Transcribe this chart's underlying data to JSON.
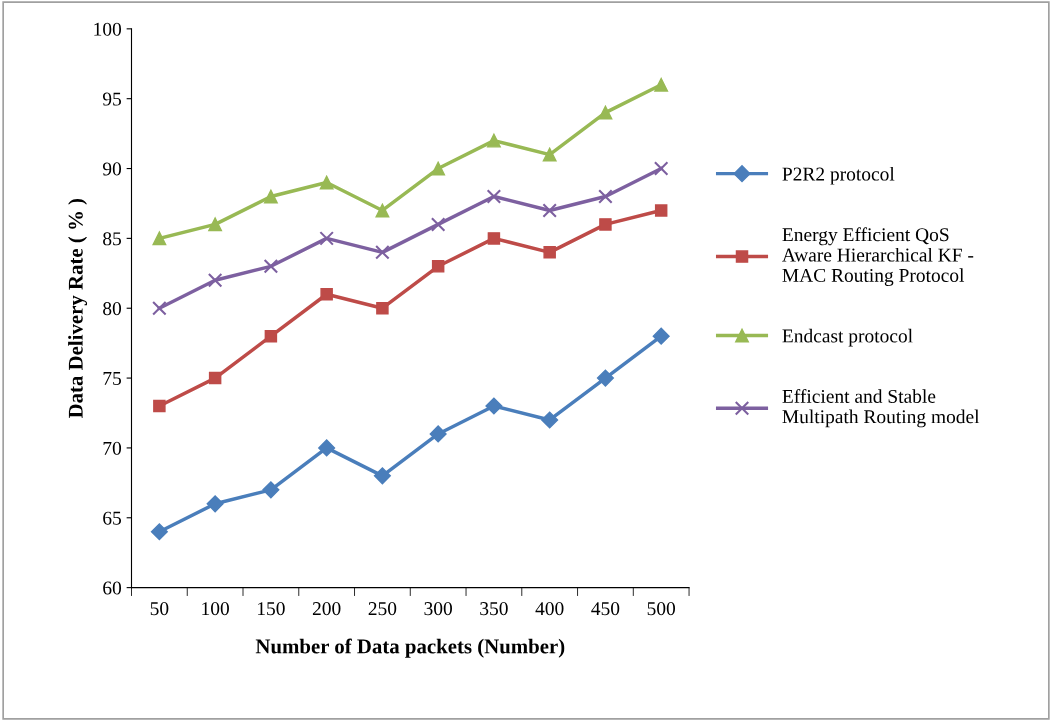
{
  "chart_data": {
    "type": "line",
    "xlabel": "Number of Data packets (Number)",
    "ylabel": "Data Delivery Rate ( % )",
    "categories": [
      "50",
      "100",
      "150",
      "200",
      "250",
      "300",
      "350",
      "400",
      "450",
      "500"
    ],
    "series": [
      {
        "name": "P2R2 protocol",
        "color": "#4a7ebb",
        "marker": "diamond",
        "values": [
          64,
          66,
          67,
          70,
          68,
          71,
          73,
          72,
          75,
          78
        ]
      },
      {
        "name": "Energy Efficient QoS\nAware Hierarchical KF -\nMAC Routing Protocol",
        "color": "#be4b48",
        "marker": "square",
        "values": [
          73,
          75,
          78,
          81,
          80,
          83,
          85,
          84,
          86,
          87
        ]
      },
      {
        "name": "Endcast protocol",
        "color": "#98b954",
        "marker": "triangle",
        "values": [
          85,
          86,
          88,
          89,
          87,
          90,
          92,
          91,
          94,
          96
        ]
      },
      {
        "name": "Efficient and Stable\nMultipath Routing model",
        "color": "#7d60a0",
        "marker": "cross",
        "values": [
          80,
          82,
          83,
          85,
          84,
          86,
          88,
          87,
          88,
          90
        ]
      }
    ],
    "ylim": [
      60,
      100
    ],
    "yticks": [
      60,
      65,
      70,
      75,
      80,
      85,
      90,
      95,
      100
    ],
    "grid": false,
    "legend": "right",
    "line_style": "solid"
  }
}
